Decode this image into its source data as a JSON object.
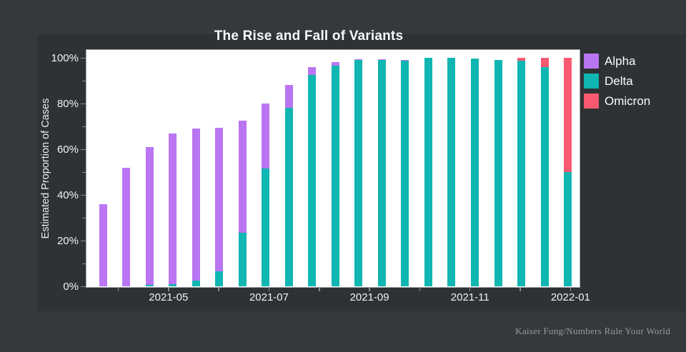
{
  "page": {
    "background": "#35393c",
    "card_background": "#2e3235"
  },
  "header": {
    "title": "The Rise and Fall of Variants"
  },
  "y_axis": {
    "label": "Estimated Proportion of Cases",
    "tick_labels": [
      "0%",
      "20%",
      "40%",
      "60%",
      "80%",
      "100%"
    ]
  },
  "x_axis": {
    "tick_labels": [
      "2021-05",
      "2021-07",
      "2021-09",
      "2021-11",
      "2022-01"
    ]
  },
  "legend": {
    "position": "top-right",
    "items": [
      {
        "label": "Alpha",
        "color": "#ba75f3"
      },
      {
        "label": "Delta",
        "color": "#10b6b1"
      },
      {
        "label": "Omicron",
        "color": "#fa5a71"
      }
    ]
  },
  "footer": {
    "attribution": "Kaiser Fung/Numbers Rule Your World"
  },
  "chart_data": {
    "type": "bar",
    "stacked": true,
    "title": "The Rise and Fall of Variants",
    "xlabel": "",
    "ylabel": "Estimated Proportion of Cases",
    "ylim": [
      0,
      100
    ],
    "y_tick_format": "percent",
    "grid": false,
    "legend_position": "top-right",
    "stack_order_bottom_to_top": [
      "Delta",
      "Alpha",
      "Omicron"
    ],
    "categories": [
      "2021-03-20",
      "2021-04-03",
      "2021-04-17",
      "2021-05-01",
      "2021-05-15",
      "2021-05-29",
      "2021-06-12",
      "2021-06-26",
      "2021-07-10",
      "2021-07-24",
      "2021-08-07",
      "2021-08-21",
      "2021-09-04",
      "2021-09-18",
      "2021-10-02",
      "2021-10-16",
      "2021-10-30",
      "2021-11-13",
      "2021-11-27",
      "2021-12-11",
      "2021-12-25"
    ],
    "series": [
      {
        "name": "Alpha",
        "color": "#ba75f3",
        "values": [
          36,
          52,
          60.5,
          66,
          66.5,
          63,
          49,
          28.5,
          10,
          3.5,
          1.3,
          0.4,
          0.3,
          0.3,
          0,
          0,
          0,
          0,
          0,
          0,
          0
        ]
      },
      {
        "name": "Delta",
        "color": "#10b6b1",
        "values": [
          0,
          0,
          0.5,
          1,
          2.5,
          6.5,
          23.5,
          51.5,
          78,
          92.5,
          96.7,
          99,
          99.1,
          98.8,
          99.9,
          99.9,
          99.8,
          99,
          98.7,
          96,
          50
        ]
      },
      {
        "name": "Omicron",
        "color": "#fa5a71",
        "values": [
          0,
          0,
          0,
          0,
          0,
          0,
          0,
          0,
          0,
          0,
          0,
          0,
          0,
          0,
          0,
          0,
          0,
          0,
          1.2,
          4,
          50
        ]
      }
    ]
  }
}
